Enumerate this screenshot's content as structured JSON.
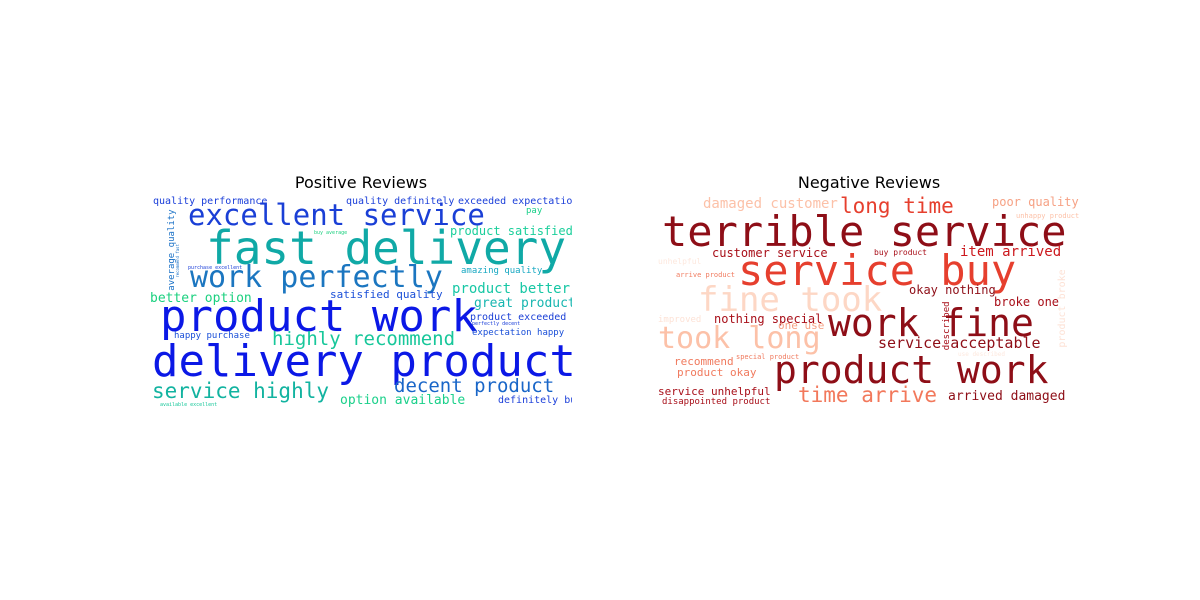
{
  "chart_data": [
    {
      "type": "wordcloud",
      "title": "Positive Reviews",
      "words": [
        {
          "text": "fast delivery",
          "color": "#10a9a6"
        },
        {
          "text": "delivery product",
          "color": "#0b18e6"
        },
        {
          "text": "product work",
          "color": "#0b18e6"
        },
        {
          "text": "excellent service",
          "color": "#1a3fd6"
        },
        {
          "text": "work perfectly",
          "color": "#1b76c0"
        },
        {
          "text": "highly recommend",
          "color": "#17c79a"
        },
        {
          "text": "service highly",
          "color": "#12b3a0"
        },
        {
          "text": "decent product",
          "color": "#1966c8"
        },
        {
          "text": "product better",
          "color": "#17c7a5"
        },
        {
          "text": "great product",
          "color": "#17b6b0"
        },
        {
          "text": "better option",
          "color": "#1bd07f"
        },
        {
          "text": "option available",
          "color": "#1bd08a"
        },
        {
          "text": "product satisfied",
          "color": "#1bcf9b"
        },
        {
          "text": "satisfied quality",
          "color": "#1a4fd8"
        },
        {
          "text": "quality performance",
          "color": "#1a3ed9"
        },
        {
          "text": "quality definitely",
          "color": "#1a3ed9"
        },
        {
          "text": "exceeded expectation",
          "color": "#1a3ed9"
        },
        {
          "text": "amazing quality",
          "color": "#18a8c2"
        },
        {
          "text": "product exceeded",
          "color": "#1a3fd6"
        },
        {
          "text": "expectation happy",
          "color": "#1a4fd8"
        },
        {
          "text": "definitely buy",
          "color": "#1a3ed9"
        },
        {
          "text": "happy purchase",
          "color": "#1a4fd8"
        },
        {
          "text": "average quality",
          "color": "#1870c6"
        },
        {
          "text": "pay",
          "color": "#1bd08a"
        },
        {
          "text": "buy average",
          "color": "#1bd07f"
        },
        {
          "text": "purchase excellent",
          "color": "#1a3ed9"
        },
        {
          "text": "perfectly decent",
          "color": "#1a3ed9"
        },
        {
          "text": "available excellent",
          "color": "#17c79a"
        },
        {
          "text": "recommend fast",
          "color": "#1870c6"
        }
      ]
    },
    {
      "type": "wordcloud",
      "title": "Negative Reviews",
      "words": [
        {
          "text": "terrible service",
          "color": "#8e0e17"
        },
        {
          "text": "service buy",
          "color": "#e63f2e"
        },
        {
          "text": "product work",
          "color": "#8e0e17"
        },
        {
          "text": "work fine",
          "color": "#8e0e17"
        },
        {
          "text": "fine took",
          "color": "#fdd7c5"
        },
        {
          "text": "took long",
          "color": "#fcc1a8"
        },
        {
          "text": "long time",
          "color": "#e63f2e"
        },
        {
          "text": "time arrive",
          "color": "#f2785b"
        },
        {
          "text": "damaged customer",
          "color": "#fcc1a8"
        },
        {
          "text": "poor quality",
          "color": "#f6a184"
        },
        {
          "text": "item arrived",
          "color": "#cc181d"
        },
        {
          "text": "customer service",
          "color": "#a80f19"
        },
        {
          "text": "service acceptable",
          "color": "#8e0e17"
        },
        {
          "text": "arrived damaged",
          "color": "#8e0e17"
        },
        {
          "text": "okay nothing",
          "color": "#8e0e17"
        },
        {
          "text": "broke one",
          "color": "#a80f19"
        },
        {
          "text": "nothing special",
          "color": "#a80f19"
        },
        {
          "text": "one use",
          "color": "#f6a184"
        },
        {
          "text": "recommend",
          "color": "#f07a5e"
        },
        {
          "text": "product okay",
          "color": "#f07a5e"
        },
        {
          "text": "service unhelpful",
          "color": "#a80f19"
        },
        {
          "text": "disappointed product",
          "color": "#a80f19"
        },
        {
          "text": "described",
          "color": "#a80f19"
        },
        {
          "text": "product broke",
          "color": "#fde2d6"
        },
        {
          "text": "improved",
          "color": "#fde2d6"
        },
        {
          "text": "special product",
          "color": "#f07a5e"
        },
        {
          "text": "arrive product",
          "color": "#f07a5e"
        },
        {
          "text": "buy product",
          "color": "#a80f19"
        },
        {
          "text": "unhappy product",
          "color": "#fcc1a8"
        },
        {
          "text": "use described",
          "color": "#fde8de"
        },
        {
          "text": "unhelpful",
          "color": "#fde8de"
        }
      ]
    }
  ]
}
